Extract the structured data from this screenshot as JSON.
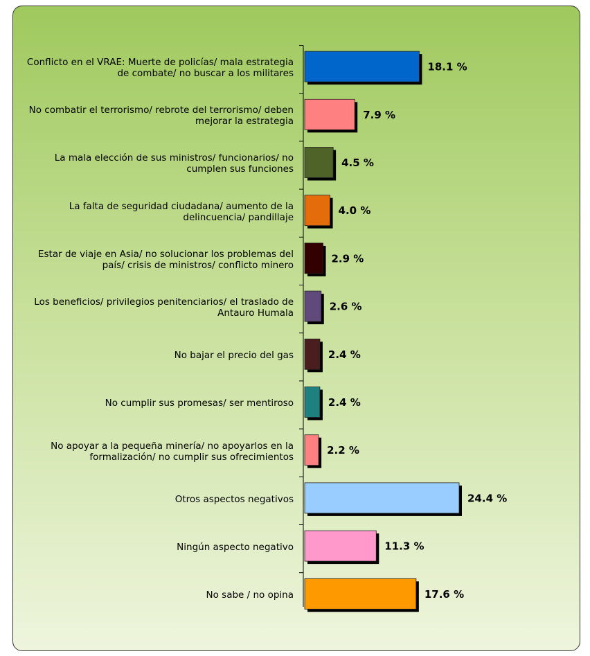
{
  "chart_data": {
    "type": "bar",
    "orientation": "horizontal",
    "categories": [
      "Conflicto en el VRAE: Muerte de policías/ mala estrategia de combate/ no buscar a los militares",
      "No combatir el terrorismo/ rebrote del terrorismo/ deben mejorar la estrategia",
      "La mala elección de sus ministros/ funcionarios/ no cumplen sus funciones",
      "La falta de seguridad ciudadana/ aumento de la delincuencia/ pandillaje",
      "Estar de viaje en Asia/ no solucionar los problemas del país/ crisis de ministros/ conflicto minero",
      "Los beneficios/ privilegios penitenciarios/ el traslado de Antauro Humala",
      "No bajar el precio del gas",
      "No cumplir sus promesas/ ser mentiroso",
      "No apoyar a la pequeña minería/ no apoyarlos en la formalización/ no cumplir sus ofrecimientos",
      "Otros aspectos negativos",
      "Ningún aspecto negativo",
      "No sabe / no opina"
    ],
    "values": [
      18.1,
      7.9,
      4.5,
      4.0,
      2.9,
      2.6,
      2.4,
      2.4,
      2.2,
      24.4,
      11.3,
      17.6
    ],
    "value_labels": [
      "18.1 %",
      "7.9 %",
      "4.5 %",
      "4.0 %",
      "2.9 %",
      "2.6 %",
      "2.4 %",
      "2.4 %",
      "2.2 %",
      "24.4 %",
      "11.3 %",
      "17.6 %"
    ],
    "colors": [
      "#0066cc",
      "#ff8080",
      "#4f6228",
      "#e46c0a",
      "#330000",
      "#604a7b",
      "#4a1e1e",
      "#1f8080",
      "#ff8080",
      "#99ccff",
      "#ff99cc",
      "#ff9900"
    ]
  }
}
